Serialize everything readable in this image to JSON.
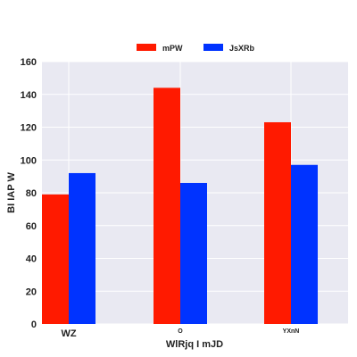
{
  "chart_data": {
    "type": "bar",
    "categories": [
      "WZ",
      "O",
      "YXnN"
    ],
    "series": [
      {
        "name": "mPW",
        "values": [
          79,
          144,
          123
        ],
        "color": "#ff1a00"
      },
      {
        "name": "JsXRb",
        "values": [
          92,
          86,
          97
        ],
        "color": "#0033ff"
      }
    ],
    "xlabel": "WlRjq I mJD",
    "ylabel": "BI IAP W",
    "ylim": [
      0,
      160
    ],
    "yticks": [
      0,
      20,
      40,
      60,
      80,
      100,
      120,
      140,
      160
    ],
    "grid": true,
    "legend": "top-center",
    "plot_background": "#e9e9f2"
  }
}
